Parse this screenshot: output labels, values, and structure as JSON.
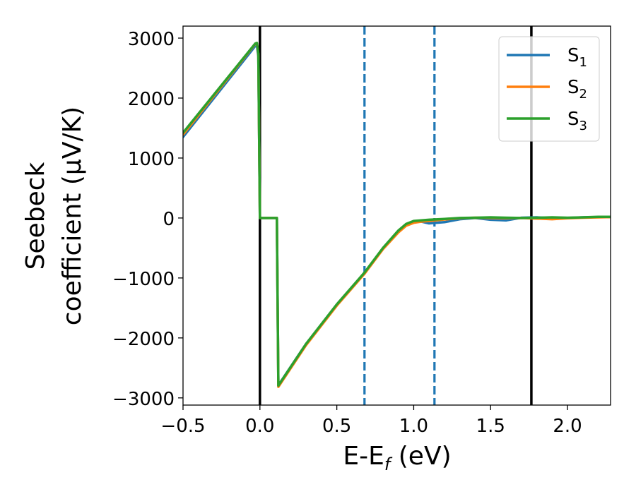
{
  "chart_data": {
    "type": "line",
    "xlabel_main": "E-E",
    "xlabel_sub": "f",
    "xlabel_tail": " (eV)",
    "ylabel_line1": "Seebeck",
    "ylabel_line2": "coefficient  (μV/K)",
    "xlim": [
      -0.5,
      2.28
    ],
    "ylim": [
      -3120,
      3200
    ],
    "xticks": [
      -0.5,
      0.0,
      0.5,
      1.0,
      1.5,
      2.0
    ],
    "xtick_labels": [
      "−0.5",
      "0.0",
      "0.5",
      "1.0",
      "1.5",
      "2.0"
    ],
    "yticks": [
      -3000,
      -2000,
      -1000,
      0,
      1000,
      2000,
      3000
    ],
    "ytick_labels": [
      "−3000",
      "−2000",
      "−1000",
      "0",
      "1000",
      "2000",
      "3000"
    ],
    "grid": false,
    "legend_position": "top-right",
    "vlines": [
      {
        "x": 0.0,
        "style": "solid",
        "color": "#000000"
      },
      {
        "x": 1.765,
        "style": "solid",
        "color": "#000000"
      },
      {
        "x": 0.68,
        "style": "dashed",
        "color": "#1f77b4"
      },
      {
        "x": 1.135,
        "style": "dashed",
        "color": "#1f77b4"
      }
    ],
    "series": [
      {
        "name_base": "S",
        "name_sub": "1",
        "color": "#1f77b4",
        "x": [
          -0.5,
          -0.03,
          -0.02,
          -0.01,
          0.0,
          0.1,
          0.11,
          0.12,
          0.3,
          0.5,
          0.68,
          0.8,
          0.9,
          0.95,
          1.0,
          1.05,
          1.1,
          1.2,
          1.3,
          1.4,
          1.5,
          1.6,
          1.7,
          1.8,
          1.9,
          2.0,
          2.1,
          2.2,
          2.28
        ],
        "y": [
          1350,
          2870,
          2880,
          2700,
          0,
          0,
          0,
          -2790,
          -2100,
          -1450,
          -920,
          -510,
          -230,
          -120,
          -70,
          -60,
          -90,
          -70,
          -20,
          0,
          -30,
          -40,
          5,
          10,
          -5,
          0,
          10,
          15,
          15
        ]
      },
      {
        "name_base": "S",
        "name_sub": "2",
        "color": "#ff7f0e",
        "x": [
          -0.5,
          -0.03,
          -0.02,
          -0.01,
          0.0,
          0.1,
          0.11,
          0.12,
          0.3,
          0.5,
          0.68,
          0.8,
          0.9,
          0.95,
          1.0,
          1.05,
          1.1,
          1.2,
          1.3,
          1.4,
          1.5,
          1.6,
          1.7,
          1.8,
          1.9,
          2.0,
          2.1,
          2.2,
          2.28
        ],
        "y": [
          1390,
          2905,
          2915,
          2730,
          0,
          0,
          0,
          -2815,
          -2120,
          -1460,
          -930,
          -520,
          -240,
          -130,
          -80,
          -60,
          -50,
          -25,
          -5,
          5,
          0,
          -5,
          0,
          -10,
          -20,
          -5,
          5,
          10,
          15
        ]
      },
      {
        "name_base": "S",
        "name_sub": "3",
        "color": "#2ca02c",
        "x": [
          -0.5,
          -0.03,
          -0.02,
          -0.01,
          0.0,
          0.1,
          0.11,
          0.12,
          0.3,
          0.5,
          0.68,
          0.8,
          0.9,
          0.95,
          1.0,
          1.05,
          1.1,
          1.2,
          1.3,
          1.4,
          1.5,
          1.6,
          1.7,
          1.8,
          1.9,
          2.0,
          2.1,
          2.2,
          2.28
        ],
        "y": [
          1420,
          2910,
          2920,
          2740,
          0,
          0,
          0,
          -2795,
          -2100,
          -1440,
          -910,
          -500,
          -210,
          -100,
          -50,
          -40,
          -30,
          -15,
          0,
          5,
          10,
          5,
          0,
          5,
          10,
          5,
          10,
          20,
          20
        ]
      }
    ]
  }
}
